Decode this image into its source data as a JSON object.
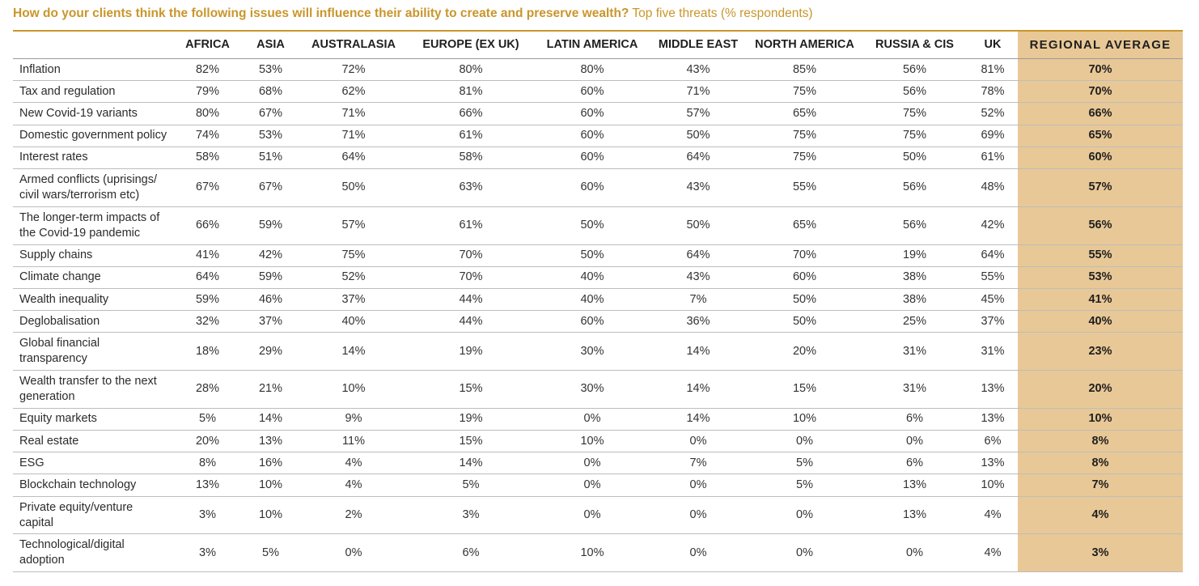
{
  "title": {
    "main": "How do your clients think the following issues will influence their ability to create and preserve wealth?",
    "sub": "Top five threats (% respondents)"
  },
  "colors": {
    "accent": "#c9962b",
    "average_column_bg": "#e8c896"
  },
  "chart_data": {
    "type": "table",
    "columns": [
      "AFRICA",
      "ASIA",
      "AUSTRALASIA",
      "EUROPE (EX UK)",
      "LATIN AMERICA",
      "MIDDLE EAST",
      "NORTH AMERICA",
      "RUSSIA & CIS",
      "UK",
      "REGIONAL AVERAGE"
    ],
    "rows": [
      {
        "issue": "Inflation",
        "lines": [
          "Inflation"
        ],
        "values": [
          "82%",
          "53%",
          "72%",
          "80%",
          "80%",
          "43%",
          "85%",
          "56%",
          "81%",
          "70%"
        ]
      },
      {
        "issue": "Tax and regulation",
        "lines": [
          "Tax and regulation"
        ],
        "values": [
          "79%",
          "68%",
          "62%",
          "81%",
          "60%",
          "71%",
          "75%",
          "56%",
          "78%",
          "70%"
        ]
      },
      {
        "issue": "New Covid-19 variants",
        "lines": [
          "New Covid-19 variants"
        ],
        "values": [
          "80%",
          "67%",
          "71%",
          "66%",
          "60%",
          "57%",
          "65%",
          "75%",
          "52%",
          "66%"
        ]
      },
      {
        "issue": "Domestic government policy",
        "lines": [
          "Domestic government policy"
        ],
        "values": [
          "74%",
          "53%",
          "71%",
          "61%",
          "60%",
          "50%",
          "75%",
          "75%",
          "69%",
          "65%"
        ]
      },
      {
        "issue": "Interest rates",
        "lines": [
          "Interest rates"
        ],
        "values": [
          "58%",
          "51%",
          "64%",
          "58%",
          "60%",
          "64%",
          "75%",
          "50%",
          "61%",
          "60%"
        ]
      },
      {
        "issue": "Armed conflicts (uprisings/ civil wars/terrorism etc)",
        "lines": [
          "Armed conflicts (uprisings/",
          "civil wars/terrorism etc)"
        ],
        "values": [
          "67%",
          "67%",
          "50%",
          "63%",
          "60%",
          "43%",
          "55%",
          "56%",
          "48%",
          "57%"
        ]
      },
      {
        "issue": "The longer-term impacts of the Covid-19 pandemic",
        "lines": [
          "The longer-term impacts of",
          "the Covid-19 pandemic"
        ],
        "values": [
          "66%",
          "59%",
          "57%",
          "61%",
          "50%",
          "50%",
          "65%",
          "56%",
          "42%",
          "56%"
        ]
      },
      {
        "issue": "Supply chains",
        "lines": [
          "Supply chains"
        ],
        "values": [
          "41%",
          "42%",
          "75%",
          "70%",
          "50%",
          "64%",
          "70%",
          "19%",
          "64%",
          "55%"
        ]
      },
      {
        "issue": "Climate change",
        "lines": [
          "Climate change"
        ],
        "values": [
          "64%",
          "59%",
          "52%",
          "70%",
          "40%",
          "43%",
          "60%",
          "38%",
          "55%",
          "53%"
        ]
      },
      {
        "issue": "Wealth inequality",
        "lines": [
          "Wealth inequality"
        ],
        "values": [
          "59%",
          "46%",
          "37%",
          "44%",
          "40%",
          "7%",
          "50%",
          "38%",
          "45%",
          "41%"
        ]
      },
      {
        "issue": "Deglobalisation",
        "lines": [
          "Deglobalisation"
        ],
        "values": [
          "32%",
          "37%",
          "40%",
          "44%",
          "60%",
          "36%",
          "50%",
          "25%",
          "37%",
          "40%"
        ]
      },
      {
        "issue": "Global financial transparency",
        "lines": [
          "Global financial",
          "transparency"
        ],
        "values": [
          "18%",
          "29%",
          "14%",
          "19%",
          "30%",
          "14%",
          "20%",
          "31%",
          "31%",
          "23%"
        ]
      },
      {
        "issue": "Wealth transfer to the next generation",
        "lines": [
          "Wealth transfer to the next",
          "generation"
        ],
        "values": [
          "28%",
          "21%",
          "10%",
          "15%",
          "30%",
          "14%",
          "15%",
          "31%",
          "13%",
          "20%"
        ]
      },
      {
        "issue": "Equity markets",
        "lines": [
          "Equity markets"
        ],
        "values": [
          "5%",
          "14%",
          "9%",
          "19%",
          "0%",
          "14%",
          "10%",
          "6%",
          "13%",
          "10%"
        ]
      },
      {
        "issue": "Real estate",
        "lines": [
          "Real estate"
        ],
        "values": [
          "20%",
          "13%",
          "11%",
          "15%",
          "10%",
          "0%",
          "0%",
          "0%",
          "6%",
          "8%"
        ]
      },
      {
        "issue": "ESG",
        "lines": [
          "ESG"
        ],
        "values": [
          "8%",
          "16%",
          "4%",
          "14%",
          "0%",
          "7%",
          "5%",
          "6%",
          "13%",
          "8%"
        ]
      },
      {
        "issue": "Blockchain technology",
        "lines": [
          "Blockchain technology"
        ],
        "values": [
          "13%",
          "10%",
          "4%",
          "5%",
          "0%",
          "0%",
          "5%",
          "13%",
          "10%",
          "7%"
        ]
      },
      {
        "issue": "Private equity/venture capital",
        "lines": [
          "Private equity/venture",
          "capital"
        ],
        "values": [
          "3%",
          "10%",
          "2%",
          "3%",
          "0%",
          "0%",
          "0%",
          "13%",
          "4%",
          "4%"
        ]
      },
      {
        "issue": "Technological/digital adoption",
        "lines": [
          "Technological/digital",
          "adoption"
        ],
        "values": [
          "3%",
          "5%",
          "0%",
          "6%",
          "10%",
          "0%",
          "0%",
          "0%",
          "4%",
          "3%"
        ]
      }
    ]
  }
}
